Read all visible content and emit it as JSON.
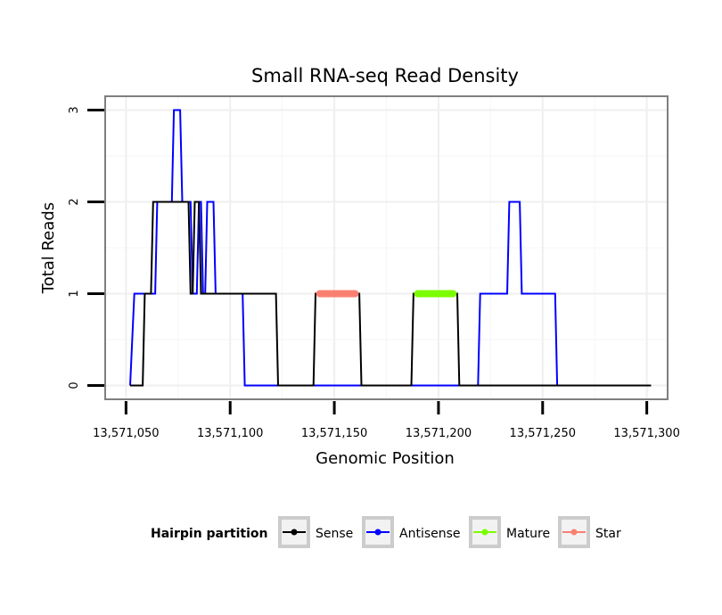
{
  "chart_data": {
    "type": "line",
    "title": "Small RNA-seq Read Density",
    "xlabel": "Genomic Position",
    "ylabel": "Total Reads",
    "xlim": [
      13571040,
      13571310
    ],
    "ylim": [
      -0.15,
      3.15
    ],
    "x_ticks": [
      13571050,
      13571100,
      13571150,
      13571200,
      13571250,
      13571300
    ],
    "x_tick_labels": [
      "13,571,050",
      "13,571,100",
      "13,571,150",
      "13,571,200",
      "13,571,250",
      "13,571,300"
    ],
    "y_ticks": [
      0,
      1,
      2,
      3
    ],
    "y_tick_labels": [
      "0",
      "1",
      "2",
      "3"
    ],
    "grid": true,
    "legend": {
      "title": "Hairpin partition",
      "position": "bottom",
      "entries": [
        "Sense",
        "Antisense",
        "Mature",
        "Star"
      ]
    },
    "series": [
      {
        "name": "Antisense",
        "color": "#0000ff",
        "x": [
          13571052,
          13571054,
          13571064,
          13571065,
          13571072,
          13571073,
          13571076,
          13571077,
          13571081,
          13571082,
          13571084,
          13571085,
          13571086,
          13571087,
          13571088,
          13571089,
          13571092,
          13571093,
          13571106,
          13571107,
          13571219,
          13571220,
          13571233,
          13571234,
          13571239,
          13571240,
          13571256,
          13571257,
          13571302
        ],
        "y": [
          0,
          1,
          1,
          2,
          2,
          3,
          3,
          2,
          2,
          1,
          1,
          2,
          2,
          1,
          1,
          2,
          2,
          1,
          1,
          0,
          0,
          1,
          1,
          2,
          2,
          1,
          1,
          0,
          0
        ]
      },
      {
        "name": "Sense",
        "color": "#000000",
        "x": [
          13571052,
          13571058,
          13571059,
          13571062,
          13571063,
          13571080,
          13571081,
          13571082,
          13571083,
          13571085,
          13571086,
          13571122,
          13571123,
          13571140,
          13571141,
          13571162,
          13571163,
          13571187,
          13571188,
          13571209,
          13571210,
          13571302
        ],
        "y": [
          0,
          0,
          1,
          1,
          2,
          2,
          1,
          1,
          2,
          2,
          1,
          1,
          0,
          0,
          1,
          1,
          0,
          0,
          1,
          1,
          0,
          0
        ]
      },
      {
        "name": "Mature",
        "color": "#7cfc00",
        "x": [
          13571190,
          13571207
        ],
        "y": [
          1,
          1
        ]
      },
      {
        "name": "Star",
        "color": "#fa8072",
        "x": [
          13571143,
          13571160
        ],
        "y": [
          1,
          1
        ]
      }
    ]
  }
}
